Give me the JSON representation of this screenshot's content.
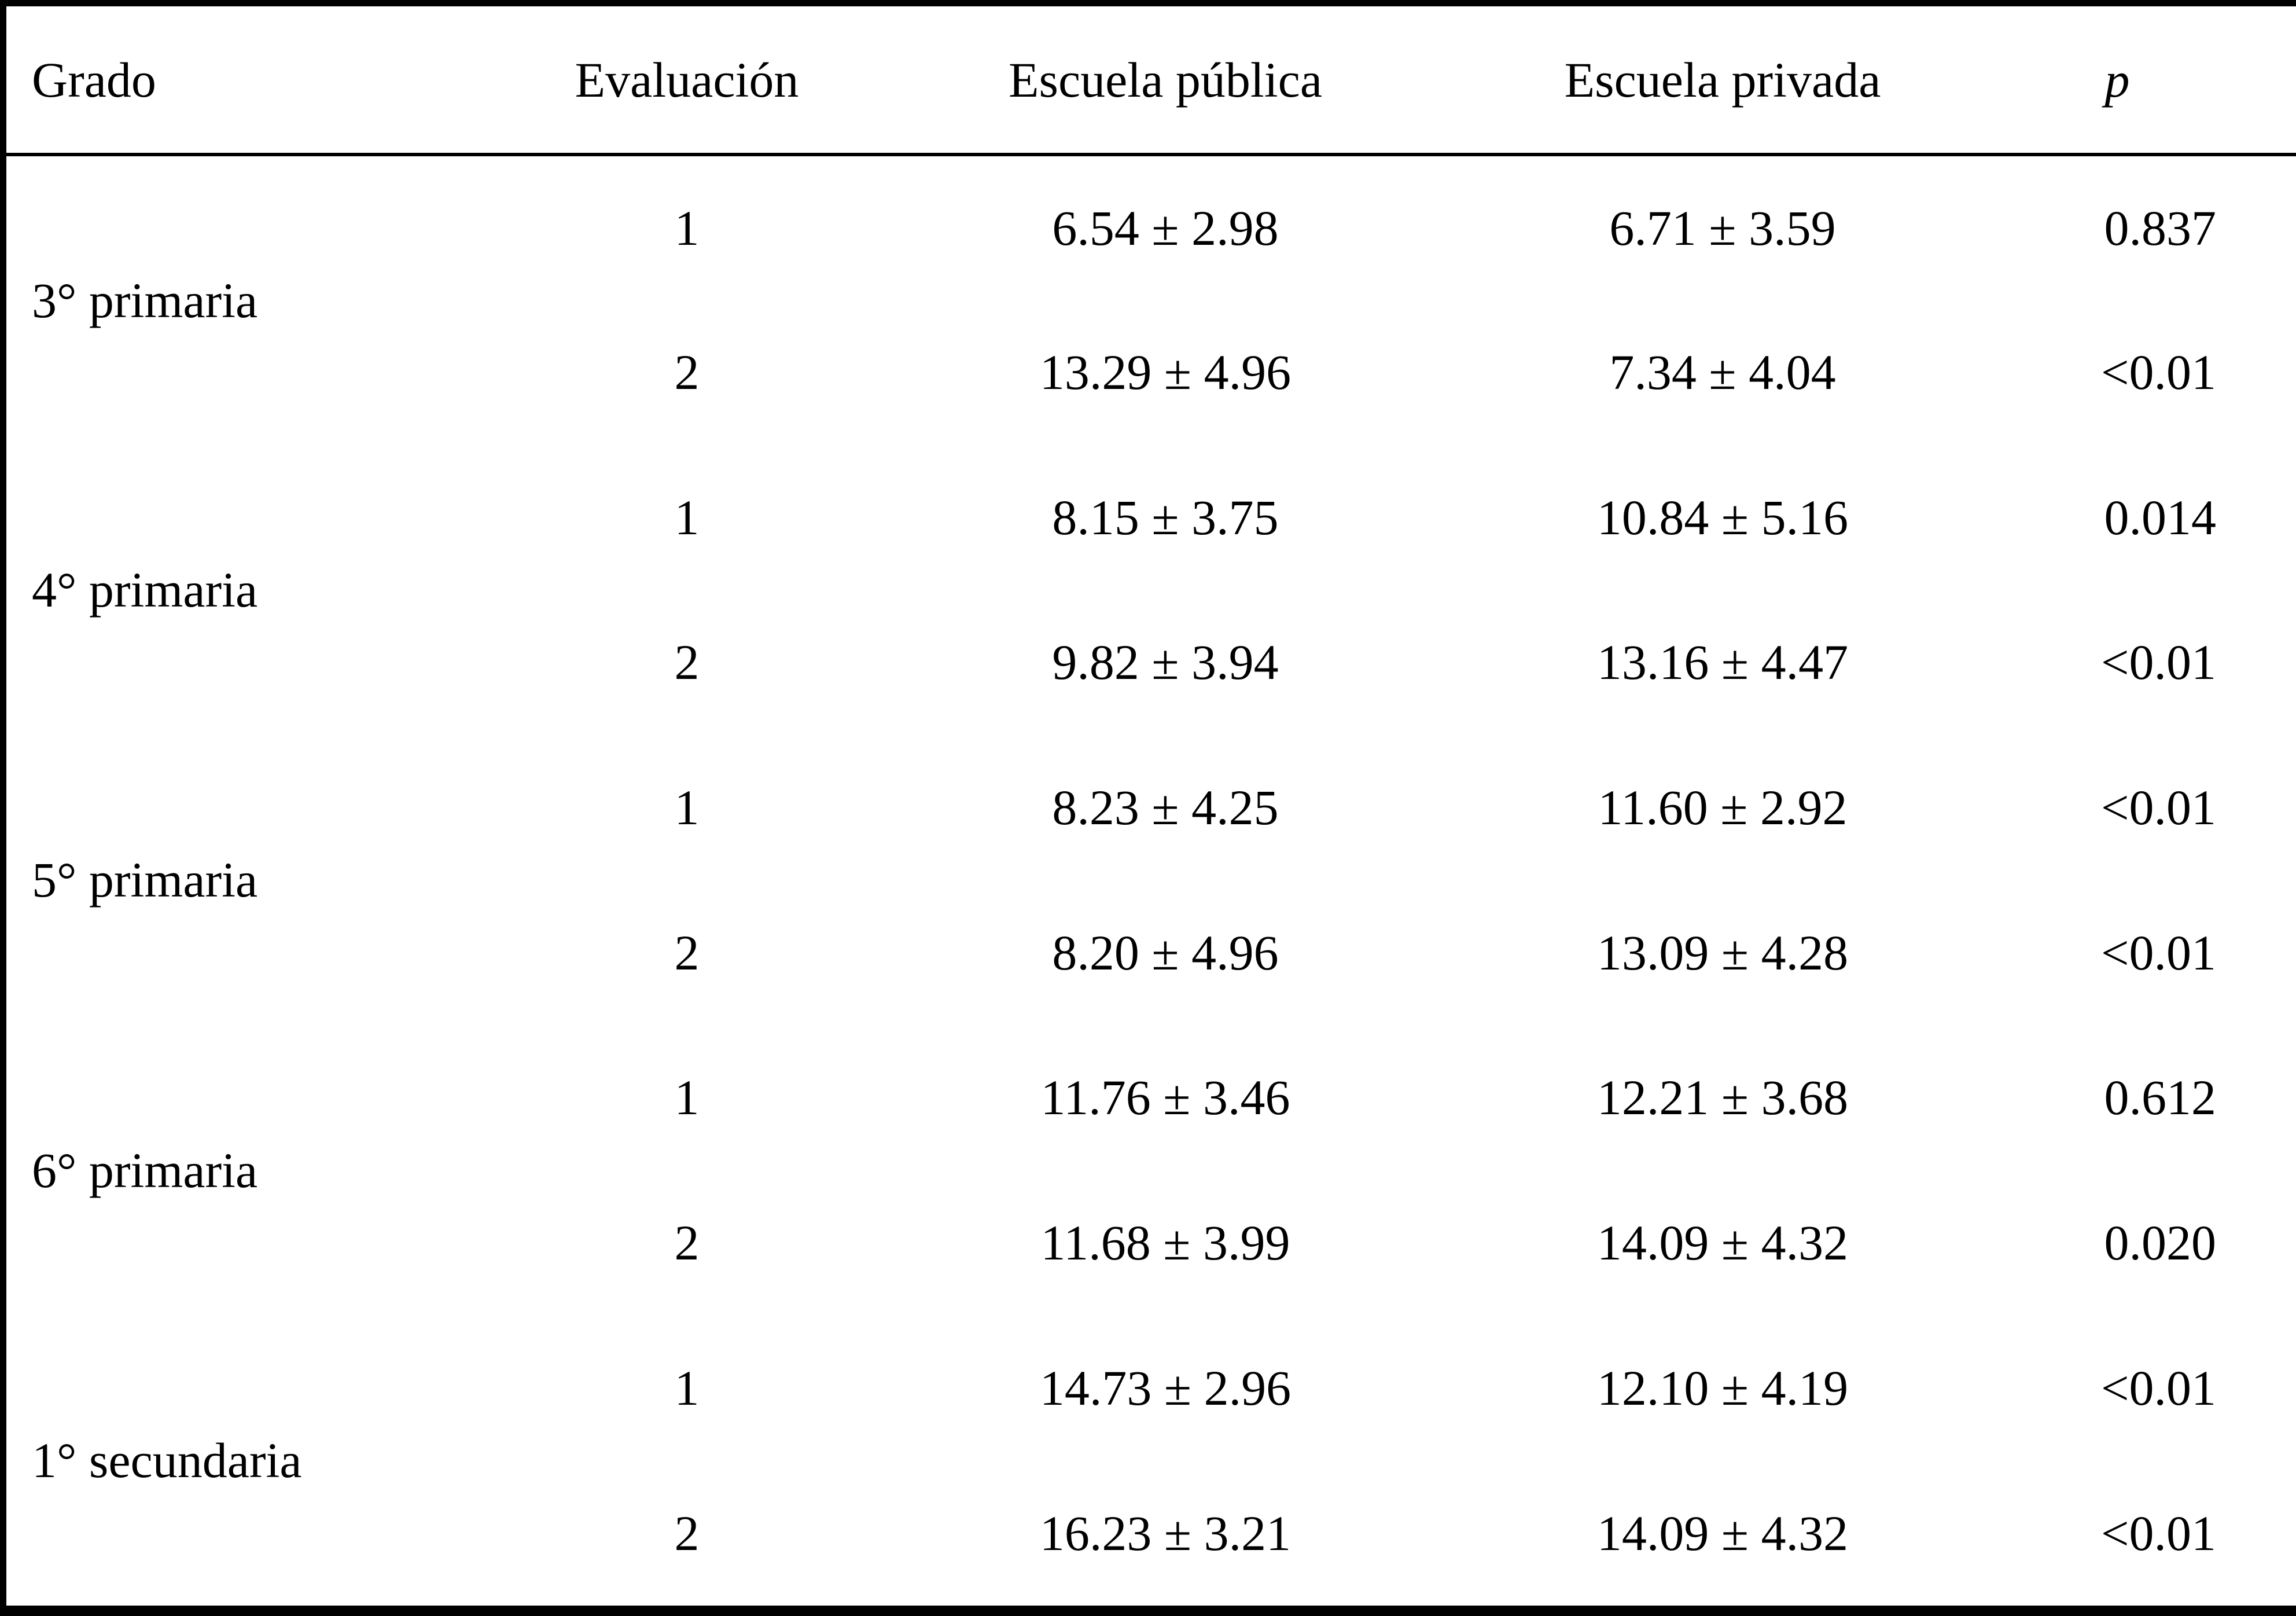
{
  "table": {
    "headers": {
      "grado": "Grado",
      "evaluacion": "Evaluación",
      "publica": "Escuela pública",
      "privada": "Escuela privada",
      "p": "p"
    },
    "blocks": [
      {
        "grade": "3° primaria",
        "rows": [
          {
            "eval": "1",
            "publica": "6.54 ± 2.98",
            "privada": "6.71 ± 3.59",
            "p": "0.837"
          },
          {
            "eval": "2",
            "publica": "13.29 ± 4.96",
            "privada": "7.34 ± 4.04",
            "p": "<0.01"
          }
        ]
      },
      {
        "grade": "4° primaria",
        "rows": [
          {
            "eval": "1",
            "publica": "8.15 ± 3.75",
            "privada": "10.84 ± 5.16",
            "p": "0.014"
          },
          {
            "eval": "2",
            "publica": "9.82 ± 3.94",
            "privada": "13.16 ± 4.47",
            "p": "<0.01"
          }
        ]
      },
      {
        "grade": "5° primaria",
        "rows": [
          {
            "eval": "1",
            "publica": "8.23 ± 4.25",
            "privada": "11.60 ± 2.92",
            "p": "<0.01"
          },
          {
            "eval": "2",
            "publica": "8.20 ± 4.96",
            "privada": "13.09 ± 4.28",
            "p": "<0.01"
          }
        ]
      },
      {
        "grade": "6° primaria",
        "rows": [
          {
            "eval": "1",
            "publica": "11.76 ± 3.46",
            "privada": "12.21 ± 3.68",
            "p": "0.612"
          },
          {
            "eval": "2",
            "publica": "11.68 ± 3.99",
            "privada": "14.09 ± 4.32",
            "p": "0.020"
          }
        ]
      },
      {
        "grade": "1° secundaria",
        "rows": [
          {
            "eval": "1",
            "publica": "14.73 ± 2.96",
            "privada": "12.10 ± 4.19",
            "p": "<0.01"
          },
          {
            "eval": "2",
            "publica": "16.23 ± 3.21",
            "privada": "14.09 ± 4.32",
            "p": "<0.01"
          }
        ]
      }
    ]
  },
  "chart_data": {
    "type": "table",
    "columns": [
      "Grado",
      "Evaluación",
      "Escuela pública",
      "Escuela privada",
      "p"
    ],
    "rows": [
      [
        "3° primaria",
        "1",
        "6.54 ± 2.98",
        "6.71 ± 3.59",
        "0.837"
      ],
      [
        "3° primaria",
        "2",
        "13.29 ± 4.96",
        "7.34 ± 4.04",
        "<0.01"
      ],
      [
        "4° primaria",
        "1",
        "8.15 ± 3.75",
        "10.84 ± 5.16",
        "0.014"
      ],
      [
        "4° primaria",
        "2",
        "9.82 ± 3.94",
        "13.16 ± 4.47",
        "<0.01"
      ],
      [
        "5° primaria",
        "1",
        "8.23 ± 4.25",
        "11.60 ± 2.92",
        "<0.01"
      ],
      [
        "5° primaria",
        "2",
        "8.20 ± 4.96",
        "13.09 ± 4.28",
        "<0.01"
      ],
      [
        "6° primaria",
        "1",
        "11.76 ± 3.46",
        "12.21 ± 3.68",
        "0.612"
      ],
      [
        "6° primaria",
        "2",
        "11.68 ± 3.99",
        "14.09 ± 4.32",
        "0.020"
      ],
      [
        "1° secundaria",
        "1",
        "14.73 ± 2.96",
        "12.10 ± 4.19",
        "<0.01"
      ],
      [
        "1° secundaria",
        "2",
        "16.23 ± 3.21",
        "14.09 ± 4.32",
        "<0.01"
      ]
    ]
  }
}
